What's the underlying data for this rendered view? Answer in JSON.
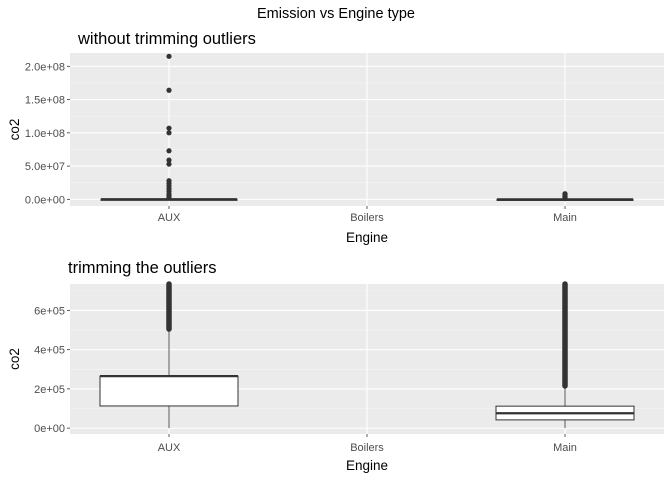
{
  "figure_title": "Emission vs Engine type",
  "chart_data": [
    {
      "type": "boxplot",
      "title": "without trimming outliers",
      "xlabel": "Engine",
      "ylabel": "co2",
      "categories": [
        "AUX",
        "Boilers",
        "Main"
      ],
      "ylim": [
        -10000000.0,
        220000000.0
      ],
      "yticks": [
        0,
        50000000,
        100000000,
        150000000,
        200000000
      ],
      "ytick_labels": [
        "0.0e+00",
        "5.0e+07",
        "1.0e+08",
        "1.5e+08",
        "2.0e+08"
      ],
      "grid": true,
      "boxes": [
        {
          "category": "AUX",
          "min": 0,
          "q1": 110000,
          "median": 250000,
          "q3": 260000,
          "max": 500000,
          "outliers": [
            215000000,
            164000000,
            107000000,
            100000000,
            73000000,
            59000000,
            53000000,
            28000000,
            24000000,
            20000000,
            16000000,
            12000000,
            8000000,
            5000000,
            2500000
          ]
        },
        {
          "category": "Main",
          "min": 0,
          "q1": 40000,
          "median": 75000,
          "q3": 110000,
          "max": 210000,
          "outliers": [
            8500000,
            7000000,
            5500000,
            4000000,
            2500000,
            1200000
          ]
        }
      ]
    },
    {
      "type": "boxplot",
      "title": "trimming the outliers",
      "xlabel": "Engine",
      "ylabel": "co2",
      "categories": [
        "AUX",
        "Boilers",
        "Main"
      ],
      "ylim": [
        -30000,
        735000
      ],
      "yticks": [
        0,
        200000,
        400000,
        600000
      ],
      "ytick_labels": [
        "0e+00",
        "2e+05",
        "4e+05",
        "6e+05"
      ],
      "grid": true,
      "boxes": [
        {
          "category": "AUX",
          "min": 0,
          "q1": 113000,
          "median": 265000,
          "q3": 265000,
          "max": 500000,
          "outlier_range": [
            505000,
            735000
          ]
        },
        {
          "category": "Main",
          "min": 0,
          "q1": 42000,
          "median": 76000,
          "q3": 112000,
          "max": 210000,
          "outlier_range": [
            215000,
            735000
          ]
        }
      ]
    }
  ]
}
